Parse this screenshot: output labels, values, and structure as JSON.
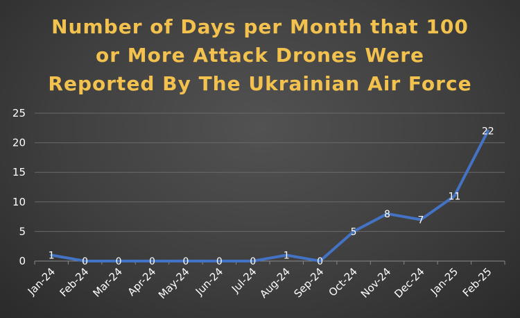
{
  "chart_data": {
    "type": "line",
    "title": "Number of Days per Month that 100\nor More Attack Drones Were\nReported By The Ukrainian Air Force",
    "xlabel": "",
    "ylabel": "",
    "categories": [
      "Jan-24",
      "Feb-24",
      "Mar-24",
      "Apr-24",
      "May-24",
      "Jun-24",
      "Jul-24",
      "Aug-24",
      "Sep-24",
      "Oct-24",
      "Nov-24",
      "Dec-24",
      "Jan-25",
      "Feb-25"
    ],
    "series": [
      {
        "values": [
          1,
          0,
          0,
          0,
          0,
          0,
          0,
          1,
          0,
          5,
          8,
          7,
          11,
          22
        ]
      }
    ],
    "ylim": [
      0,
      25
    ],
    "yticks": [
      0,
      5,
      10,
      15,
      20,
      25
    ],
    "grid": true,
    "legend": "none",
    "data_labels": true,
    "colors": {
      "line": "#4472c4",
      "title": "#f2c14e",
      "gridline": "#6a6a6a",
      "text": "#ffffff"
    }
  }
}
